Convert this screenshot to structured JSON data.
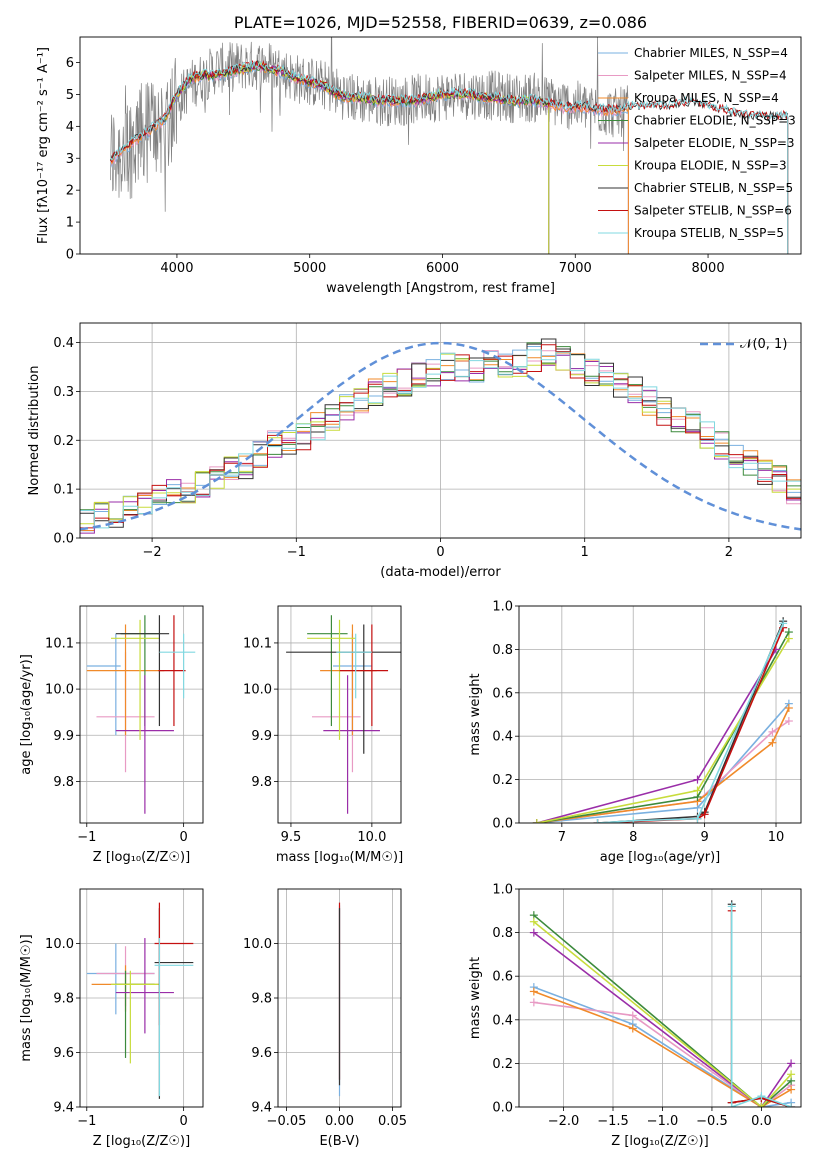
{
  "colors": {
    "spectra": [
      "#7ab0e0",
      "#e89ac4",
      "#f08a2a",
      "#3c8a3c",
      "#9a2ea8",
      "#c8dc3c",
      "#333333",
      "#c41010",
      "#80d8e0"
    ],
    "data_spectrum": "#808080",
    "normal_curve": "#6090d8",
    "grid": "#b0b0b0",
    "axes": "#000000"
  },
  "chart_data": [
    {
      "id": "spectrum",
      "type": "line",
      "title": "PLATE=1026, MJD=52558, FIBERID=0639, z=0.086",
      "xlabel": "wavelength [Angstrom, rest frame]",
      "ylabel": "Flux [fλ10⁻¹⁷ erg cm⁻² s⁻¹ A⁻¹]",
      "xlim": [
        3270,
        8700
      ],
      "ylim": [
        0,
        6.8
      ],
      "xticks": [
        "4000",
        "5000",
        "6000",
        "7000",
        "8000"
      ],
      "yticks": [
        "0",
        "1",
        "2",
        "3",
        "4",
        "5",
        "6"
      ],
      "grid": false,
      "legend_position": "right",
      "data_x": [
        3500,
        3700,
        3900,
        4100,
        4300,
        4500,
        4700,
        4900,
        5100,
        5300,
        5500,
        5700,
        5900,
        6100,
        6300,
        6500,
        6700,
        6900,
        7100,
        7300,
        7400
      ],
      "data_y": [
        3.0,
        3.6,
        4.2,
        5.3,
        5.8,
        5.9,
        5.9,
        5.5,
        5.3,
        4.9,
        4.8,
        4.8,
        4.9,
        5.0,
        5.0,
        4.9,
        4.9,
        4.7,
        4.6,
        4.4,
        4.5
      ],
      "model_x": [
        3500,
        3600,
        3700,
        3800,
        3900,
        4000,
        4100,
        4200,
        4300,
        4400,
        4500,
        4600,
        4700,
        4800,
        4900,
        5000,
        5100,
        5200,
        5300,
        5400,
        5500,
        5600,
        5700,
        5800,
        5900,
        6000,
        6100,
        6200,
        6300,
        6400,
        6500,
        6600,
        6700,
        6800,
        6900,
        7000,
        7100,
        7200,
        7300,
        7400,
        7500,
        7600,
        7700,
        7800,
        7900,
        8000,
        8100,
        8200,
        8300,
        8400
      ],
      "model_y": [
        2.9,
        3.3,
        3.6,
        3.9,
        4.2,
        5.0,
        5.5,
        5.6,
        5.6,
        5.7,
        5.8,
        5.9,
        5.8,
        5.7,
        5.5,
        5.4,
        5.3,
        5.0,
        4.9,
        4.9,
        4.8,
        4.8,
        4.8,
        4.8,
        4.9,
        5.0,
        5.0,
        5.0,
        4.9,
        4.9,
        4.8,
        4.8,
        4.8,
        4.7,
        4.6,
        4.6,
        4.6,
        4.5,
        4.5,
        4.6,
        4.6,
        4.6,
        4.6,
        4.7,
        4.7,
        4.6,
        4.5,
        4.4,
        4.3,
        4.3
      ],
      "series": [
        {
          "name": "Chabrier MILES, N_SSP=4",
          "color_index": 0,
          "x_range": [
            3500,
            7400
          ]
        },
        {
          "name": "Salpeter MILES, N_SSP=4",
          "color_index": 1,
          "x_range": [
            3500,
            7400
          ]
        },
        {
          "name": "Kroupa MILES, N_SSP=4",
          "color_index": 2,
          "x_range": [
            3500,
            7400
          ]
        },
        {
          "name": "Chabrier ELODIE, N_SSP=3",
          "color_index": 3,
          "x_range": [
            3900,
            6800
          ]
        },
        {
          "name": "Salpeter ELODIE, N_SSP=3",
          "color_index": 4,
          "x_range": [
            3900,
            6800
          ]
        },
        {
          "name": "Kroupa ELODIE, N_SSP=3",
          "color_index": 5,
          "x_range": [
            3900,
            6800
          ]
        },
        {
          "name": "Chabrier STELIB, N_SSP=5",
          "color_index": 6,
          "x_range": [
            3500,
            8600
          ]
        },
        {
          "name": "Salpeter STELIB, N_SSP=6",
          "color_index": 7,
          "x_range": [
            3500,
            8600
          ]
        },
        {
          "name": "Kroupa STELIB, N_SSP=5",
          "color_index": 8,
          "x_range": [
            3500,
            8600
          ]
        }
      ]
    },
    {
      "id": "residuals",
      "type": "bar",
      "xlabel": "(data-model)/error",
      "ylabel": "Normed distribution",
      "xlim": [
        -2.5,
        2.5
      ],
      "ylim": [
        0,
        0.44
      ],
      "xticks": [
        "−2",
        "−1",
        "0",
        "1",
        "2"
      ],
      "yticks": [
        "0.0",
        "0.1",
        "0.2",
        "0.3",
        "0.4"
      ],
      "grid": true,
      "legend_position": "top-right",
      "bin_width": 0.1,
      "bin_start": -2.5,
      "histogram": [
        0.03,
        0.05,
        0.05,
        0.06,
        0.07,
        0.08,
        0.09,
        0.1,
        0.11,
        0.12,
        0.14,
        0.15,
        0.17,
        0.19,
        0.2,
        0.21,
        0.23,
        0.25,
        0.27,
        0.28,
        0.3,
        0.31,
        0.32,
        0.33,
        0.34,
        0.35,
        0.35,
        0.34,
        0.36,
        0.35,
        0.36,
        0.37,
        0.38,
        0.37,
        0.35,
        0.34,
        0.33,
        0.31,
        0.3,
        0.28,
        0.26,
        0.24,
        0.23,
        0.21,
        0.19,
        0.17,
        0.15,
        0.13,
        0.12,
        0.1
      ],
      "normal_label": "𝒩(0, 1)"
    },
    {
      "id": "age_vs_Z",
      "type": "scatter",
      "xlabel": "Z [log₁₀(Z/Z☉)]",
      "ylabel": "age  [log₁₀(age/yr)]",
      "xlim": [
        -1.07,
        0.2
      ],
      "ylim": [
        9.71,
        10.18
      ],
      "xticks": [
        "−1",
        "0"
      ],
      "yticks": [
        "9.8",
        "9.9",
        "10.0",
        "10.1"
      ],
      "grid": true,
      "points": [
        {
          "x": -0.7,
          "y": 10.05,
          "xerr": [
            0.3,
            0.05
          ],
          "yerr": [
            0.15,
            0.07
          ],
          "c": 0
        },
        {
          "x": -0.6,
          "y": 9.94,
          "xerr": [
            0.3,
            0.3
          ],
          "yerr": [
            0.12,
            0.14
          ],
          "c": 1
        },
        {
          "x": -0.6,
          "y": 10.04,
          "xerr": [
            0.4,
            0.4
          ],
          "yerr": [
            0.14,
            0.1
          ],
          "c": 2
        },
        {
          "x": -0.4,
          "y": 10.12,
          "xerr": [
            0.25,
            0.15
          ],
          "yerr": [
            0.2,
            0.04
          ],
          "c": 3
        },
        {
          "x": -0.4,
          "y": 9.91,
          "xerr": [
            0.3,
            0.3
          ],
          "yerr": [
            0.18,
            0.12
          ],
          "c": 4
        },
        {
          "x": -0.45,
          "y": 10.11,
          "xerr": [
            0.3,
            0.2
          ],
          "yerr": [
            0.22,
            0.04
          ],
          "c": 5
        },
        {
          "x": -0.25,
          "y": 10.12,
          "xerr": [
            0.45,
            0.1
          ],
          "yerr": [
            0.2,
            0.04
          ],
          "c": 6
        },
        {
          "x": -0.1,
          "y": 10.04,
          "xerr": [
            0.16,
            0.12
          ],
          "yerr": [
            0.12,
            0.12
          ],
          "c": 7
        },
        {
          "x": 0.0,
          "y": 10.08,
          "xerr": [
            0.25,
            0.12
          ],
          "yerr": [
            0.1,
            0.04
          ],
          "c": 8
        }
      ]
    },
    {
      "id": "age_vs_mass",
      "type": "scatter",
      "xlabel": "mass [log₁₀(M/M☉)]",
      "ylabel": "",
      "xlim": [
        9.42,
        10.18
      ],
      "ylim": [
        9.71,
        10.18
      ],
      "xticks": [
        "9.5",
        "10.0"
      ],
      "yticks": [
        "9.8",
        "9.9",
        "10.0",
        "10.1"
      ],
      "grid": true,
      "points": [
        {
          "x": 9.88,
          "y": 10.05,
          "xerr": [
            0.12,
            0.12
          ],
          "yerr": [
            0.15,
            0.07
          ],
          "c": 0
        },
        {
          "x": 9.88,
          "y": 9.94,
          "xerr": [
            0.25,
            0.05
          ],
          "yerr": [
            0.12,
            0.14
          ],
          "c": 1
        },
        {
          "x": 9.88,
          "y": 10.04,
          "xerr": [
            0.2,
            0.15
          ],
          "yerr": [
            0.14,
            0.1
          ],
          "c": 2
        },
        {
          "x": 9.75,
          "y": 10.12,
          "xerr": [
            0.15,
            0.1
          ],
          "yerr": [
            0.2,
            0.04
          ],
          "c": 3
        },
        {
          "x": 9.85,
          "y": 9.91,
          "xerr": [
            0.15,
            0.2
          ],
          "yerr": [
            0.18,
            0.12
          ],
          "c": 4
        },
        {
          "x": 9.8,
          "y": 10.11,
          "xerr": [
            0.2,
            0.1
          ],
          "yerr": [
            0.22,
            0.04
          ],
          "c": 5
        },
        {
          "x": 9.95,
          "y": 10.08,
          "xerr": [
            0.48,
            0.25
          ],
          "yerr": [
            0.22,
            0.06
          ],
          "c": 6
        },
        {
          "x": 10.0,
          "y": 10.04,
          "xerr": [
            0.2,
            0.1
          ],
          "yerr": [
            0.12,
            0.1
          ],
          "c": 7
        },
        {
          "x": 9.9,
          "y": 10.08,
          "xerr": [
            0.12,
            0.1
          ],
          "yerr": [
            0.1,
            0.04
          ],
          "c": 8
        }
      ]
    },
    {
      "id": "weight_vs_age",
      "type": "line",
      "xlabel": "age  [log₁₀(age/yr)]",
      "ylabel": "mass weight",
      "xlim": [
        6.4,
        10.35
      ],
      "ylim": [
        0,
        1.0
      ],
      "xticks": [
        "7",
        "8",
        "9",
        "10"
      ],
      "yticks": [
        "0.0",
        "0.2",
        "0.4",
        "0.6",
        "0.8",
        "1.0"
      ],
      "grid": true,
      "series": [
        {
          "c": 0,
          "x": [
            6.65,
            8.9,
            10.18
          ],
          "y": [
            0.0,
            0.07,
            0.55
          ]
        },
        {
          "c": 1,
          "x": [
            6.65,
            8.9,
            9.95,
            10.18
          ],
          "y": [
            0.0,
            0.1,
            0.42,
            0.47
          ]
        },
        {
          "c": 2,
          "x": [
            6.65,
            8.9,
            9.95,
            10.18
          ],
          "y": [
            0.0,
            0.1,
            0.37,
            0.53
          ]
        },
        {
          "c": 3,
          "x": [
            6.65,
            8.9,
            10.18
          ],
          "y": [
            0.0,
            0.12,
            0.88
          ]
        },
        {
          "c": 4,
          "x": [
            6.65,
            8.9,
            10.0
          ],
          "y": [
            0.0,
            0.2,
            0.8
          ]
        },
        {
          "c": 5,
          "x": [
            6.65,
            8.9,
            10.18
          ],
          "y": [
            0.0,
            0.15,
            0.85
          ]
        },
        {
          "c": 6,
          "x": [
            7.5,
            8.9,
            9.0,
            10.1
          ],
          "y": [
            0.0,
            0.03,
            0.05,
            0.93
          ]
        },
        {
          "c": 7,
          "x": [
            7.5,
            8.9,
            9.0,
            10.1
          ],
          "y": [
            0.0,
            0.02,
            0.04,
            0.9
          ]
        },
        {
          "c": 8,
          "x": [
            7.5,
            8.0,
            8.9,
            10.1
          ],
          "y": [
            0.0,
            0.01,
            0.02,
            0.92
          ]
        }
      ]
    },
    {
      "id": "mass_vs_Z",
      "type": "scatter",
      "xlabel": "Z [log₁₀(Z/Z☉)]",
      "ylabel": "mass [log₁₀(M/M☉)]",
      "xlim": [
        -1.07,
        0.2
      ],
      "ylim": [
        9.4,
        10.2
      ],
      "xticks": [
        "−1",
        "0"
      ],
      "yticks": [
        "9.4",
        "9.6",
        "9.8",
        "10.0"
      ],
      "grid": true,
      "points": [
        {
          "x": -0.7,
          "y": 9.89,
          "xerr": [
            0.3,
            0.4
          ],
          "yerr": [
            0.15,
            0.11
          ],
          "c": 0
        },
        {
          "x": -0.6,
          "y": 9.89,
          "xerr": [
            0.3,
            0.3
          ],
          "yerr": [
            0.12,
            0.1
          ],
          "c": 1
        },
        {
          "x": -0.6,
          "y": 9.85,
          "xerr": [
            0.35,
            0.35
          ],
          "yerr": [
            0.1,
            0.07
          ],
          "c": 2
        },
        {
          "x": -0.6,
          "y": 9.85,
          "xerr": [
            0.1,
            0.3
          ],
          "yerr": [
            0.27,
            0.05
          ],
          "c": 3
        },
        {
          "x": -0.4,
          "y": 9.82,
          "xerr": [
            0.3,
            0.3
          ],
          "yerr": [
            0.15,
            0.2
          ],
          "c": 4
        },
        {
          "x": -0.55,
          "y": 9.85,
          "xerr": [
            0.2,
            0.3
          ],
          "yerr": [
            0.29,
            0.05
          ],
          "c": 5
        },
        {
          "x": -0.25,
          "y": 9.93,
          "xerr": [
            0.05,
            0.35
          ],
          "yerr": [
            0.5,
            0.2
          ],
          "c": 6
        },
        {
          "x": -0.25,
          "y": 10.0,
          "xerr": [
            0.05,
            0.35
          ],
          "yerr": [
            0.3,
            0.15
          ],
          "c": 7
        },
        {
          "x": -0.25,
          "y": 9.92,
          "xerr": [
            0.05,
            0.35
          ],
          "yerr": [
            0.48,
            0.1
          ],
          "c": 8
        }
      ]
    },
    {
      "id": "mass_vs_ebv",
      "type": "scatter",
      "xlabel": "E(B-V)",
      "ylabel": "",
      "xlim": [
        -0.058,
        0.058
      ],
      "ylim": [
        9.4,
        10.2
      ],
      "xticks": [
        "−0.05",
        "0.00",
        "0.05"
      ],
      "yticks": [
        "9.4",
        "9.6",
        "9.8",
        "10.0"
      ],
      "grid": true,
      "points": [
        {
          "x": 0.0,
          "y": 9.89,
          "xerr": [
            0,
            0
          ],
          "yerr": [
            0.45,
            0.25
          ],
          "c": 0
        },
        {
          "x": 0.0,
          "y": 10.0,
          "xerr": [
            0,
            0
          ],
          "yerr": [
            0.5,
            0.15
          ],
          "c": 7
        },
        {
          "x": 0.0,
          "y": 9.93,
          "xerr": [
            0,
            0
          ],
          "yerr": [
            0.45,
            0.2
          ],
          "c": 6
        }
      ]
    },
    {
      "id": "weight_vs_Z",
      "type": "line",
      "xlabel": "Z [log₁₀(Z/Z☉)]",
      "ylabel": "mass weight",
      "xlim": [
        -2.45,
        0.4
      ],
      "ylim": [
        0,
        1.0
      ],
      "xticks": [
        "−2.0",
        "−1.5",
        "−1.0",
        "−0.5",
        "0.0"
      ],
      "yticks": [
        "0.0",
        "0.2",
        "0.4",
        "0.6",
        "0.8",
        "1.0"
      ],
      "grid": true,
      "series": [
        {
          "c": 0,
          "x": [
            -2.3,
            -1.3,
            0.0,
            0.3
          ],
          "y": [
            0.55,
            0.38,
            0.0,
            0.02
          ]
        },
        {
          "c": 1,
          "x": [
            -2.3,
            -1.3,
            0.0,
            0.3
          ],
          "y": [
            0.48,
            0.42,
            0.0,
            0.1
          ]
        },
        {
          "c": 2,
          "x": [
            -2.3,
            -1.3,
            0.0,
            0.3
          ],
          "y": [
            0.53,
            0.36,
            0.0,
            0.08
          ]
        },
        {
          "c": 3,
          "x": [
            -2.3,
            0.0,
            0.3
          ],
          "y": [
            0.88,
            0.0,
            0.12
          ]
        },
        {
          "c": 4,
          "x": [
            -2.3,
            0.0,
            0.3
          ],
          "y": [
            0.8,
            0.0,
            0.2
          ]
        },
        {
          "c": 5,
          "x": [
            -2.3,
            0.0,
            0.3
          ],
          "y": [
            0.85,
            0.0,
            0.15
          ]
        },
        {
          "c": 6,
          "x": [
            -0.3,
            -0.3,
            0.0,
            0.3
          ],
          "y": [
            0.93,
            0.02,
            0.04,
            0.0
          ]
        },
        {
          "c": 7,
          "x": [
            -0.3,
            -0.3,
            0.0,
            0.3
          ],
          "y": [
            0.9,
            0.02,
            0.04,
            0.0
          ]
        },
        {
          "c": 8,
          "x": [
            -0.3,
            -0.3,
            0.0,
            0.3
          ],
          "y": [
            0.92,
            0.0,
            0.05,
            0.0
          ]
        }
      ]
    }
  ]
}
